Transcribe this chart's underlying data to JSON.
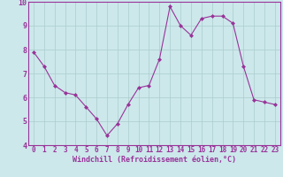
{
  "x": [
    0,
    1,
    2,
    3,
    4,
    5,
    6,
    7,
    8,
    9,
    10,
    11,
    12,
    13,
    14,
    15,
    16,
    17,
    18,
    19,
    20,
    21,
    22,
    23
  ],
  "y": [
    7.9,
    7.3,
    6.5,
    6.2,
    6.1,
    5.6,
    5.1,
    4.4,
    4.9,
    5.7,
    6.4,
    6.5,
    7.6,
    9.8,
    9.0,
    8.6,
    9.3,
    9.4,
    9.4,
    9.1,
    7.3,
    5.9,
    5.8,
    5.7
  ],
  "line_color": "#993399",
  "marker": "D",
  "marker_size": 2,
  "bg_color": "#cce8eb",
  "grid_color": "#aacccc",
  "xlabel": "Windchill (Refroidissement éolien,°C)",
  "xlabel_color": "#993399",
  "tick_color": "#993399",
  "ylim": [
    4,
    10
  ],
  "yticks": [
    4,
    5,
    6,
    7,
    8,
    9,
    10
  ],
  "xlim": [
    -0.5,
    23.5
  ],
  "xticks": [
    0,
    1,
    2,
    3,
    4,
    5,
    6,
    7,
    8,
    9,
    10,
    11,
    12,
    13,
    14,
    15,
    16,
    17,
    18,
    19,
    20,
    21,
    22,
    23
  ],
  "spine_color": "#993399",
  "label_fontsize": 5.5,
  "xlabel_fontsize": 6.0
}
